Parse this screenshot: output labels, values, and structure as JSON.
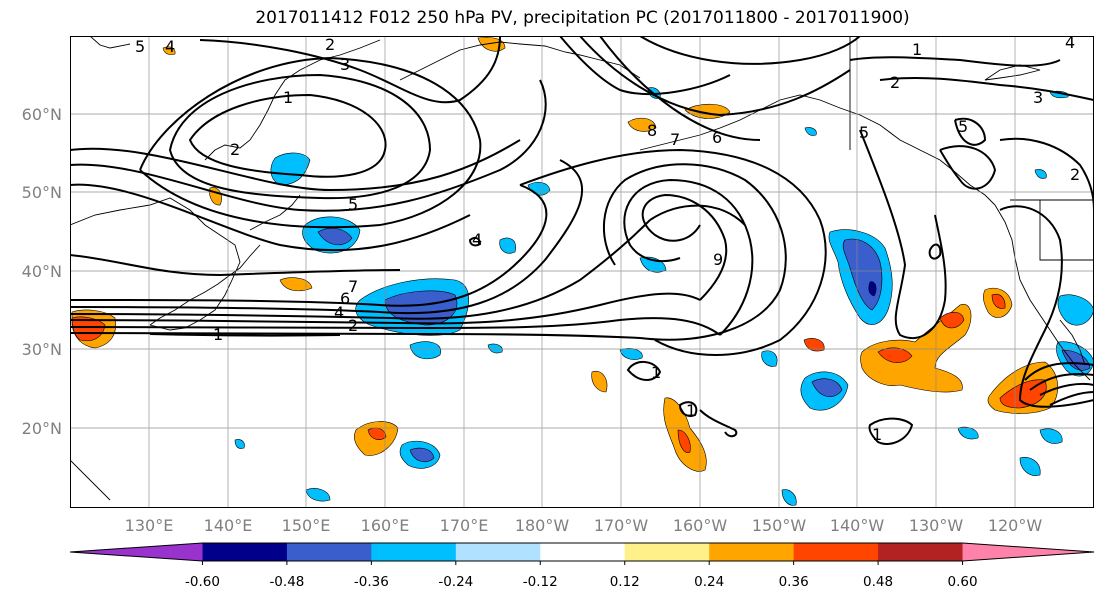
{
  "title": "2017011412 F012 250 hPa PV, precipitation PC (2017011800 - 2017011900)",
  "lat_labels": [
    "60°N",
    "50°N",
    "40°N",
    "30°N",
    "20°N"
  ],
  "lon_labels": [
    "130°E",
    "140°E",
    "150°E",
    "160°E",
    "170°E",
    "180°W",
    "170°W",
    "160°W",
    "150°W",
    "140°W",
    "130°W",
    "120°W"
  ],
  "colorbar": {
    "colors": [
      "#9a32cd",
      "#00008b",
      "#3a5fcd",
      "#00bfff",
      "#b0e2ff",
      "#ffffff",
      "#fff08a",
      "#ffa500",
      "#ff4500",
      "#b22222",
      "#ff82ab"
    ],
    "tick_labels": [
      "-0.60",
      "-0.48",
      "-0.36",
      "-0.24",
      "-0.12",
      "0.12",
      "0.24",
      "0.36",
      "0.48",
      "0.60"
    ]
  },
  "contour_labels": [
    "5",
    "4",
    "2",
    "3",
    "1",
    "2",
    "5",
    "4",
    "7",
    "6",
    "4",
    "2",
    "1",
    "8",
    "7",
    "6",
    "9",
    "5",
    "1",
    "2",
    "3",
    "5",
    "4",
    "2",
    "1",
    "1",
    "1"
  ]
}
